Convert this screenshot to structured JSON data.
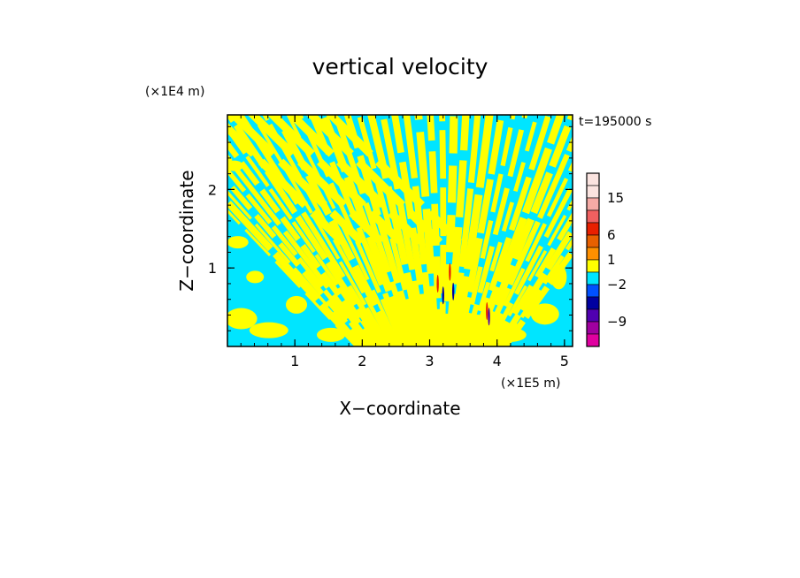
{
  "chart_data": {
    "type": "heatmap",
    "title": "vertical velocity",
    "xlabel": "X−coordinate",
    "ylabel": "Z−coordinate",
    "x_unit": "(×1E5 m)",
    "y_unit": "(×1E4 m)",
    "time_label": "t=195000 s",
    "xlim": [
      0,
      5.12
    ],
    "ylim": [
      0,
      2.95
    ],
    "x_ticks": [
      {
        "value": 1,
        "label": "1"
      },
      {
        "value": 2,
        "label": "2"
      },
      {
        "value": 3,
        "label": "3"
      },
      {
        "value": 4,
        "label": "4"
      },
      {
        "value": 5,
        "label": "5"
      }
    ],
    "y_ticks": [
      {
        "value": 1,
        "label": "1"
      },
      {
        "value": 2,
        "label": "2"
      }
    ],
    "dominant_field_colors": {
      "positive": "#ffff00",
      "negative": "#00e5ff"
    },
    "colorbar": {
      "levels": [
        {
          "color": "#fbe4e0"
        },
        {
          "color": "#fbe4e0"
        },
        {
          "color": "#f5aaa5"
        },
        {
          "color": "#f06060"
        },
        {
          "color": "#e82000"
        },
        {
          "color": "#e86000"
        },
        {
          "color": "#ff9000"
        },
        {
          "color": "#ffff00"
        },
        {
          "color": "#00e5ff"
        },
        {
          "color": "#0050ff"
        },
        {
          "color": "#0000a0"
        },
        {
          "color": "#5000b0"
        },
        {
          "color": "#a000a0"
        },
        {
          "color": "#e000a0"
        }
      ],
      "labels": [
        {
          "text": "15",
          "level_index": 2
        },
        {
          "text": "6",
          "level_index": 5
        },
        {
          "text": "1",
          "level_index": 7
        },
        {
          "text": "−2",
          "level_index": 9
        },
        {
          "text": "−9",
          "level_index": 12
        }
      ]
    }
  }
}
